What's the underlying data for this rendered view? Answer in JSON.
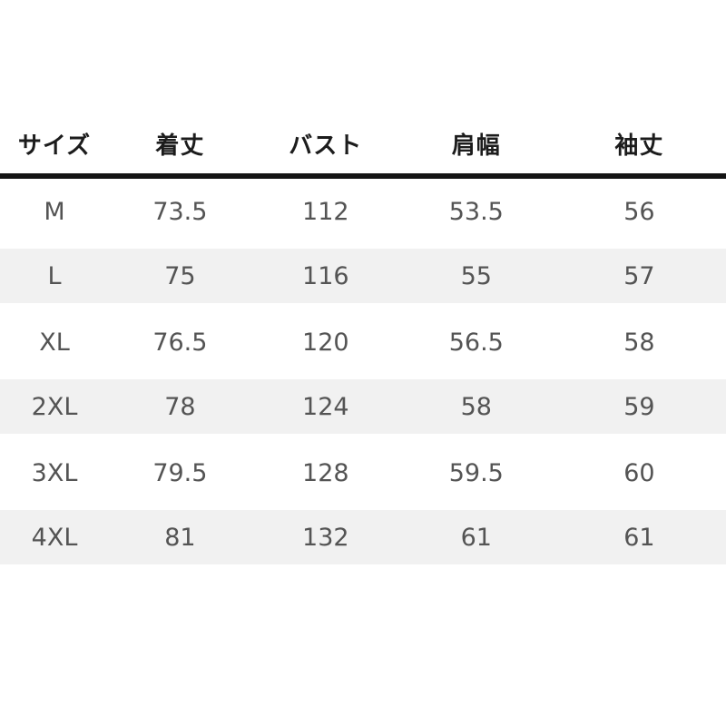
{
  "colors": {
    "page_background": "#ffffff",
    "stripe_background": "#f1f1f1",
    "header_text": "#1c1c1c",
    "body_text": "#545454",
    "divider": "#141414"
  },
  "chart_data": {
    "type": "table",
    "title": "",
    "columns": [
      "サイズ",
      "着丈",
      "バスト",
      "肩幅",
      "袖丈"
    ],
    "rows": [
      {
        "cells": [
          "M",
          "73.5",
          "112",
          "53.5",
          "56"
        ]
      },
      {
        "cells": [
          "L",
          "75",
          "116",
          "55",
          "57"
        ]
      },
      {
        "cells": [
          "XL",
          "76.5",
          "120",
          "56.5",
          "58"
        ]
      },
      {
        "cells": [
          "2XL",
          "78",
          "124",
          "58",
          "59"
        ]
      },
      {
        "cells": [
          "3XL",
          "79.5",
          "128",
          "59.5",
          "60"
        ]
      },
      {
        "cells": [
          "4XL",
          "81",
          "132",
          "61",
          "61"
        ]
      }
    ],
    "layout": {
      "striped_rows": [
        1,
        3,
        5
      ],
      "grid": false,
      "header_divider": "thick-black"
    }
  }
}
